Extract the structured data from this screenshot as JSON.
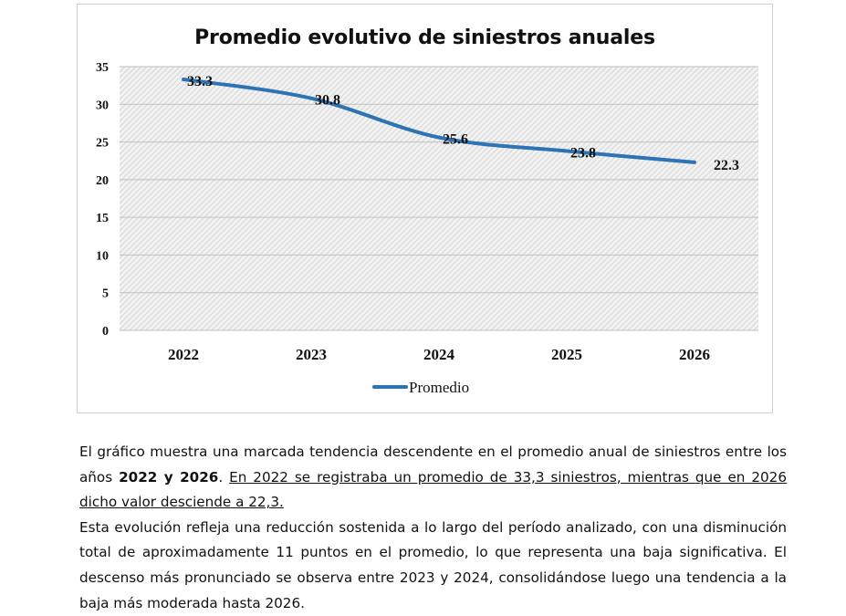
{
  "chart_data": {
    "type": "line",
    "title": "Promedio evolutivo de siniestros anuales",
    "x": [
      "2022",
      "2023",
      "2024",
      "2025",
      "2026"
    ],
    "series": [
      {
        "name": "Promedio",
        "values": [
          33.3,
          30.8,
          25.6,
          23.8,
          22.3
        ],
        "labels": [
          "33.3",
          "30.8",
          "25.6",
          "23.8",
          "22.3"
        ],
        "color": "#2e74b5"
      }
    ],
    "ylim": [
      0,
      35
    ],
    "yticks": [
      0,
      5,
      10,
      15,
      20,
      25,
      30,
      35
    ],
    "grid": true,
    "legend": "bottom"
  },
  "paragraph1": {
    "lead": "El gráfico muestra una marcada tendencia descendente en el promedio anual de siniestros entre los años ",
    "bold": "2022 y 2026",
    "mid": ". ",
    "underlined": "En 2022 se registraba un promedio de 33,3 siniestros, mientras que en 2026 dicho valor desciende a 22,3."
  },
  "paragraph2": "Esta evolución refleja una reducción sostenida a lo largo del período analizado, con una disminución total de aproximadamente 11 puntos en el promedio, lo que representa una baja significativa. El descenso más pronunciado se observa entre 2023 y 2024, consolidándose luego una tendencia a la baja más moderada hasta 2026."
}
